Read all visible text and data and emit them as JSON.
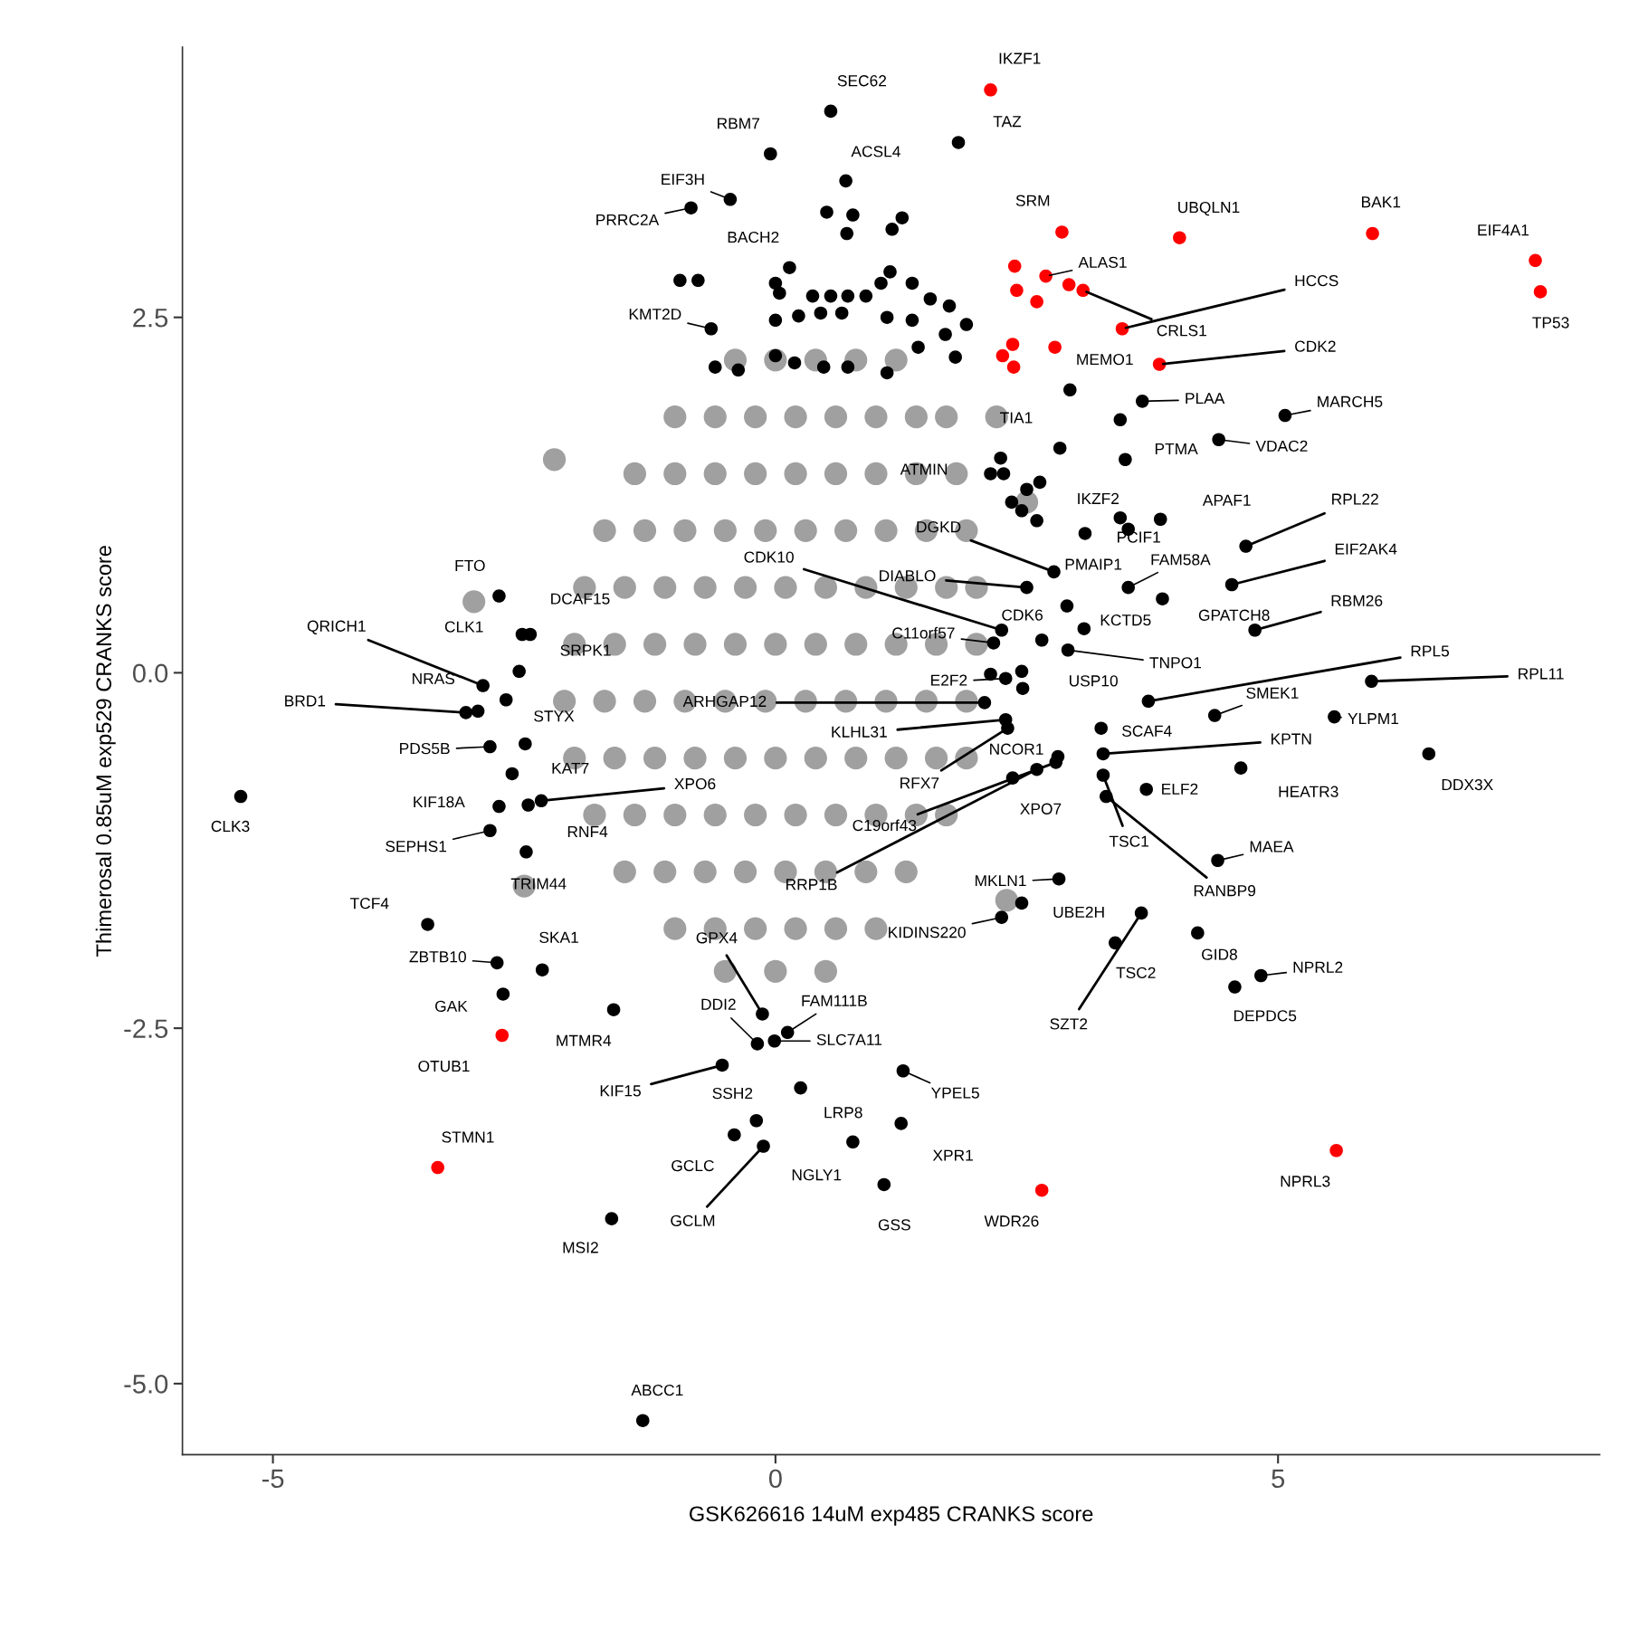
{
  "chart_data": {
    "type": "scatter",
    "marker": "circle",
    "xlabel": "GSK626616 14uM exp485 CRANKS score",
    "ylabel": "Thimerosal 0.85uM exp529 CRANKS score",
    "xlim": [
      -5.9,
      8.2
    ],
    "ylim": [
      -5.5,
      4.4
    ],
    "xticks": [
      -5,
      0,
      5
    ],
    "yticks": [
      {
        "value": -5,
        "label": "-5.0"
      },
      {
        "value": -2.5,
        "label": "-2.5"
      },
      {
        "value": 0,
        "label": "0.0"
      },
      {
        "value": 2.5,
        "label": "2.5"
      }
    ],
    "series": [
      {
        "color": "#a0a0a0",
        "x": [
          -0.4,
          0,
          0.4,
          0.8,
          1.2,
          -1.0,
          -0.6,
          -0.2,
          0.2,
          0.6,
          1.0,
          1.4,
          1.7,
          -1.4,
          -1.0,
          -0.6,
          -0.2,
          0.2,
          0.6,
          1.0,
          1.4,
          1.8,
          -1.7,
          -1.3,
          -0.9,
          -0.5,
          -0.1,
          0.3,
          0.7,
          1.1,
          1.5,
          1.9,
          -1.9,
          -1.5,
          -1.1,
          -0.7,
          -0.3,
          0.1,
          0.5,
          0.9,
          1.3,
          1.7,
          2.0,
          -2.0,
          -1.6,
          -1.2,
          -0.8,
          -0.4,
          0,
          0.4,
          0.8,
          1.2,
          1.6,
          2.0,
          -2.1,
          -1.7,
          -1.3,
          -0.9,
          -0.5,
          -0.1,
          0.3,
          0.7,
          1.1,
          1.5,
          1.9,
          -2.0,
          -1.6,
          -1.2,
          -0.8,
          -0.4,
          0,
          0.4,
          0.8,
          1.2,
          1.6,
          1.9,
          -1.8,
          -1.4,
          -1.0,
          -0.6,
          -0.2,
          0.2,
          0.6,
          1.0,
          1.4,
          1.7,
          -1.5,
          -1.1,
          -0.7,
          -0.3,
          0.1,
          0.5,
          0.9,
          1.3,
          -1.0,
          -0.6,
          -0.2,
          0.2,
          0.6,
          1.0,
          -0.5,
          0,
          0.5,
          -3.0,
          -2.5,
          2.5,
          2.3,
          -2.2,
          2.2
        ],
        "values": [
          2.2,
          2.2,
          2.2,
          2.2,
          2.2,
          1.8,
          1.8,
          1.8,
          1.8,
          1.8,
          1.8,
          1.8,
          1.8,
          1.4,
          1.4,
          1.4,
          1.4,
          1.4,
          1.4,
          1.4,
          1.4,
          1.4,
          1.0,
          1.0,
          1.0,
          1.0,
          1.0,
          1.0,
          1.0,
          1.0,
          1.0,
          1.0,
          0.6,
          0.6,
          0.6,
          0.6,
          0.6,
          0.6,
          0.6,
          0.6,
          0.6,
          0.6,
          0.6,
          0.2,
          0.2,
          0.2,
          0.2,
          0.2,
          0.2,
          0.2,
          0.2,
          0.2,
          0.2,
          0.2,
          -0.2,
          -0.2,
          -0.2,
          -0.2,
          -0.2,
          -0.2,
          -0.2,
          -0.2,
          -0.2,
          -0.2,
          -0.2,
          -0.6,
          -0.6,
          -0.6,
          -0.6,
          -0.6,
          -0.6,
          -0.6,
          -0.6,
          -0.6,
          -0.6,
          -0.6,
          -1.0,
          -1.0,
          -1.0,
          -1.0,
          -1.0,
          -1.0,
          -1.0,
          -1.0,
          -1.0,
          -1.0,
          -1.4,
          -1.4,
          -1.4,
          -1.4,
          -1.4,
          -1.4,
          -1.4,
          -1.4,
          -1.8,
          -1.8,
          -1.8,
          -1.8,
          -1.8,
          -1.8,
          -2.1,
          -2.1,
          -2.1,
          0.5,
          -1.5,
          1.2,
          -1.6,
          1.5,
          1.8
        ]
      },
      {
        "color": "#000000",
        "x": [
          0.55,
          1.82,
          -0.05,
          0.7,
          -0.45,
          -0.84,
          0.14,
          -0.64,
          3.65,
          5.07,
          4.41,
          3.48,
          2.83,
          2.14,
          2.63,
          3.83,
          4.68,
          2.77,
          3.08,
          3.51,
          3.51,
          4.54,
          2.25,
          2.5,
          2.9,
          3.07,
          3.85,
          4.77,
          2.17,
          -2.75,
          -2.44,
          -2.91,
          -2.52,
          -2.55,
          2.46,
          2.91,
          3.71,
          5.93,
          4.37,
          -2.96,
          2.29,
          2.08,
          -3.08,
          -2.68,
          5.56,
          3.24,
          2.29,
          3.26,
          2.81,
          -2.84,
          6.5,
          4.63,
          3.69,
          -2.62,
          -2.33,
          2.31,
          -2.75,
          2.36,
          -5.32,
          2.79,
          -2.84,
          -2.46,
          3.26,
          3.29,
          4.4,
          -2.48,
          2.6,
          2.82,
          -3.46,
          2.45,
          -2.77,
          -2.32,
          -0.13,
          2.25,
          3.38,
          4.2,
          4.83,
          4.57,
          3.64,
          -2.71,
          -0.18,
          0.12,
          -0.01,
          -1.61,
          -0.53,
          -0.19,
          1.27,
          0.25,
          1.25,
          -0.41,
          0.77,
          -0.12,
          1.08,
          -1.63,
          -1.32,
          0.51,
          0.77,
          0.71,
          1.26,
          1.16,
          -0.95,
          -0.77,
          0,
          0.04,
          0.37,
          0.55,
          0.72,
          0.9,
          1.05,
          1.14,
          1.36,
          1.54,
          1.73,
          1.9,
          0,
          0.23,
          0.45,
          0.66,
          1.11,
          1.36,
          1.69,
          -0.6,
          -0.37,
          0,
          0.19,
          0.48,
          0.72,
          1.11,
          1.42,
          1.79,
          2.24,
          2.5,
          2.45,
          2.6,
          2.27,
          2.35,
          3.43,
          2.65,
          2.14,
          2.45,
          -2.49,
          2.93,
          3.43
        ],
        "values": [
          3.95,
          3.73,
          3.65,
          3.46,
          3.33,
          3.27,
          2.85,
          2.42,
          1.91,
          1.81,
          1.64,
          1.5,
          1.58,
          1.4,
          1.34,
          1.08,
          0.89,
          0.71,
          0.98,
          1.01,
          0.6,
          0.62,
          0.3,
          0.6,
          0.47,
          0.31,
          0.52,
          0.3,
          0.21,
          0.54,
          0.27,
          -0.09,
          0.27,
          0.01,
          -0.11,
          0.16,
          -0.2,
          -0.06,
          -0.3,
          -0.27,
          -0.04,
          -0.21,
          -0.28,
          -0.19,
          -0.31,
          -0.39,
          -0.33,
          -0.57,
          -0.59,
          -0.52,
          -0.57,
          -0.67,
          -0.82,
          -0.71,
          -0.9,
          -0.39,
          -0.94,
          -0.74,
          -0.87,
          -0.63,
          -1.11,
          -0.93,
          -0.72,
          -0.87,
          -1.32,
          -1.26,
          -0.68,
          -1.45,
          -1.77,
          -1.62,
          -2.04,
          -2.09,
          -2.4,
          -1.72,
          -1.9,
          -1.83,
          -2.13,
          -2.21,
          -1.69,
          -2.26,
          -2.61,
          -2.53,
          -2.59,
          -2.37,
          -2.76,
          -3.15,
          -2.8,
          -2.92,
          -3.17,
          -3.25,
          -3.3,
          -3.33,
          -3.6,
          -3.84,
          -5.26,
          3.24,
          3.22,
          3.09,
          3.2,
          3.12,
          2.76,
          2.76,
          2.74,
          2.67,
          2.65,
          2.65,
          2.65,
          2.65,
          2.74,
          2.82,
          2.74,
          2.63,
          2.58,
          2.45,
          2.48,
          2.51,
          2.53,
          2.53,
          2.5,
          2.48,
          2.38,
          2.15,
          2.13,
          2.23,
          2.18,
          2.15,
          2.15,
          2.11,
          2.29,
          2.22,
          1.51,
          1.29,
          1.14,
          1.07,
          1.4,
          1.2,
          1.09,
          0.23,
          -0.01,
          0.01,
          -0.5,
          1.99,
          1.78
        ]
      },
      {
        "color": "#ff0000",
        "x": [
          2.14,
          2.85,
          4.02,
          5.94,
          7.56,
          2.69,
          3.45,
          3.06,
          7.61,
          3.82,
          2.78,
          -2.72,
          -3.36,
          5.58,
          2.65,
          2.38,
          2.4,
          2.6,
          2.92,
          2.36,
          2.26,
          2.37
        ],
        "values": [
          4.1,
          3.1,
          3.06,
          3.09,
          2.9,
          2.79,
          2.42,
          2.69,
          2.68,
          2.17,
          2.29,
          -2.55,
          -3.48,
          -3.36,
          -3.64,
          2.86,
          2.69,
          2.61,
          2.73,
          2.31,
          2.23,
          2.15
        ]
      }
    ],
    "annotations": [
      {
        "text": "IKZF1",
        "x": 2.14,
        "y": 4.1
      },
      {
        "text": "SEC62",
        "x": 0.55,
        "y": 3.95
      },
      {
        "text": "TAZ",
        "x": 1.82,
        "y": 3.73
      },
      {
        "text": "RBM7",
        "x": -0.05,
        "y": 3.65
      },
      {
        "text": "ACSL4",
        "x": 0.7,
        "y": 3.46
      },
      {
        "text": "EIF3H",
        "x": -0.45,
        "y": 3.33
      },
      {
        "text": "SRM",
        "x": 2.85,
        "y": 3.1
      },
      {
        "text": "UBQLN1",
        "x": 4.02,
        "y": 3.06
      },
      {
        "text": "BAK1",
        "x": 5.94,
        "y": 3.09
      },
      {
        "text": "EIF4A1",
        "x": 7.56,
        "y": 2.9
      },
      {
        "text": "PRRC2A",
        "x": -0.84,
        "y": 3.27
      },
      {
        "text": "BACH2",
        "x": 0.14,
        "y": 2.85
      },
      {
        "text": "ALAS1",
        "x": 2.69,
        "y": 2.79
      },
      {
        "text": "HCCS",
        "x": 3.45,
        "y": 2.42
      },
      {
        "text": "CRLS1",
        "x": 3.06,
        "y": 2.69
      },
      {
        "text": "TP53",
        "x": 7.61,
        "y": 2.68
      },
      {
        "text": "KMT2D",
        "x": -0.64,
        "y": 2.42
      },
      {
        "text": "CDK2",
        "x": 3.82,
        "y": 2.17
      },
      {
        "text": "MEMO1",
        "x": 2.78,
        "y": 2.29
      },
      {
        "text": "PLAA",
        "x": 3.65,
        "y": 1.91
      },
      {
        "text": "MARCH5",
        "x": 5.07,
        "y": 1.81
      },
      {
        "text": "VDAC2",
        "x": 4.41,
        "y": 1.64
      },
      {
        "text": "PTMA",
        "x": 3.48,
        "y": 1.5
      },
      {
        "text": "TIA1",
        "x": 2.83,
        "y": 1.58
      },
      {
        "text": "ATMIN",
        "x": 2.14,
        "y": 1.4
      },
      {
        "text": "IKZF2",
        "x": 2.63,
        "y": 1.34
      },
      {
        "text": "APAF1",
        "x": 3.83,
        "y": 1.08
      },
      {
        "text": "RPL22",
        "x": 4.68,
        "y": 0.89
      },
      {
        "text": "DGKD",
        "x": 2.77,
        "y": 0.71
      },
      {
        "text": "PMAIP1",
        "x": 3.08,
        "y": 0.98
      },
      {
        "text": "PCIF1",
        "x": 3.51,
        "y": 1.01
      },
      {
        "text": "FAM58A",
        "x": 3.51,
        "y": 0.6
      },
      {
        "text": "EIF2AK4",
        "x": 4.54,
        "y": 0.62
      },
      {
        "text": "CDK10",
        "x": 2.25,
        "y": 0.3
      },
      {
        "text": "DIABLO",
        "x": 2.5,
        "y": 0.6
      },
      {
        "text": "CDK6",
        "x": 2.9,
        "y": 0.47
      },
      {
        "text": "KCTD5",
        "x": 3.07,
        "y": 0.31
      },
      {
        "text": "GPATCH8",
        "x": 3.85,
        "y": 0.52
      },
      {
        "text": "RBM26",
        "x": 4.77,
        "y": 0.3
      },
      {
        "text": "C11orf57",
        "x": 2.17,
        "y": 0.21
      },
      {
        "text": "FTO",
        "x": -2.75,
        "y": 0.54
      },
      {
        "text": "DCAF15",
        "x": -2.44,
        "y": 0.27
      },
      {
        "text": "QRICH1",
        "x": -2.91,
        "y": -0.09
      },
      {
        "text": "CLK1",
        "x": -2.52,
        "y": 0.27
      },
      {
        "text": "SRPK1",
        "x": -2.55,
        "y": 0.01
      },
      {
        "text": "USP10",
        "x": 2.46,
        "y": -0.11
      },
      {
        "text": "TNPO1",
        "x": 2.91,
        "y": 0.16
      },
      {
        "text": "RPL5",
        "x": 3.71,
        "y": -0.2
      },
      {
        "text": "RPL11",
        "x": 5.93,
        "y": -0.06
      },
      {
        "text": "SMEK1",
        "x": 4.37,
        "y": -0.3
      },
      {
        "text": "NRAS",
        "x": -2.96,
        "y": -0.27
      },
      {
        "text": "E2F2",
        "x": 2.29,
        "y": -0.04
      },
      {
        "text": "ARHGAP12",
        "x": 2.08,
        "y": -0.21
      },
      {
        "text": "BRD1",
        "x": -3.08,
        "y": -0.28
      },
      {
        "text": "STYX",
        "x": -2.68,
        "y": -0.19
      },
      {
        "text": "YLPM1",
        "x": 5.56,
        "y": -0.31
      },
      {
        "text": "SCAF4",
        "x": 3.24,
        "y": -0.39
      },
      {
        "text": "KLHL31",
        "x": 2.29,
        "y": -0.33
      },
      {
        "text": "KPTN",
        "x": 3.26,
        "y": -0.57
      },
      {
        "text": "NCOR1",
        "x": 2.81,
        "y": -0.59
      },
      {
        "text": "PDS5B",
        "x": -2.84,
        "y": -0.52
      },
      {
        "text": "DDX3X",
        "x": 6.5,
        "y": -0.57
      },
      {
        "text": "HEATR3",
        "x": 4.63,
        "y": -0.67
      },
      {
        "text": "ELF2",
        "x": 3.69,
        "y": -0.82
      },
      {
        "text": "KAT7",
        "x": -2.62,
        "y": -0.71
      },
      {
        "text": "XPO6",
        "x": -2.33,
        "y": -0.9
      },
      {
        "text": "RFX7",
        "x": 2.31,
        "y": -0.39
      },
      {
        "text": "KIF18A",
        "x": -2.75,
        "y": -0.94
      },
      {
        "text": "XPO7",
        "x": 2.36,
        "y": -0.74
      },
      {
        "text": "CLK3",
        "x": -5.32,
        "y": -0.87
      },
      {
        "text": "C19orf43",
        "x": 2.79,
        "y": -0.63
      },
      {
        "text": "SEPHS1",
        "x": -2.84,
        "y": -1.11
      },
      {
        "text": "RNF4",
        "x": -2.46,
        "y": -0.93
      },
      {
        "text": "TSC1",
        "x": 3.26,
        "y": -0.72
      },
      {
        "text": "RANBP9",
        "x": 3.29,
        "y": -0.87
      },
      {
        "text": "MAEA",
        "x": 4.4,
        "y": -1.32
      },
      {
        "text": "TRIM44",
        "x": -2.48,
        "y": -1.26
      },
      {
        "text": "RRP1B",
        "x": 2.6,
        "y": -0.68
      },
      {
        "text": "MKLN1",
        "x": 2.82,
        "y": -1.45
      },
      {
        "text": "TCF4",
        "x": -3.46,
        "y": -1.77
      },
      {
        "text": "UBE2H",
        "x": 2.45,
        "y": -1.62
      },
      {
        "text": "ZBTB10",
        "x": -2.77,
        "y": -2.04
      },
      {
        "text": "SKA1",
        "x": -2.32,
        "y": -2.09
      },
      {
        "text": "GPX4",
        "x": -0.13,
        "y": -2.4
      },
      {
        "text": "KIDINS220",
        "x": 2.25,
        "y": -1.72
      },
      {
        "text": "TSC2",
        "x": 3.38,
        "y": -1.9
      },
      {
        "text": "GID8",
        "x": 4.2,
        "y": -1.83
      },
      {
        "text": "NPRL2",
        "x": 4.83,
        "y": -2.13
      },
      {
        "text": "DEPDC5",
        "x": 4.57,
        "y": -2.21
      },
      {
        "text": "SZT2",
        "x": 3.64,
        "y": -1.69
      },
      {
        "text": "GAK",
        "x": -2.71,
        "y": -2.26
      },
      {
        "text": "DDI2",
        "x": -0.18,
        "y": -2.61
      },
      {
        "text": "FAM111B",
        "x": 0.12,
        "y": -2.53
      },
      {
        "text": "SLC7A11",
        "x": -0.01,
        "y": -2.59
      },
      {
        "text": "MTMR4",
        "x": -1.61,
        "y": -2.37
      },
      {
        "text": "OTUB1",
        "x": -2.72,
        "y": -2.55
      },
      {
        "text": "KIF15",
        "x": -0.53,
        "y": -2.76
      },
      {
        "text": "SSH2",
        "x": -0.19,
        "y": -3.15
      },
      {
        "text": "YPEL5",
        "x": 1.27,
        "y": -2.8
      },
      {
        "text": "LRP8",
        "x": 0.25,
        "y": -2.92
      },
      {
        "text": "STMN1",
        "x": -3.36,
        "y": -3.48
      },
      {
        "text": "XPR1",
        "x": 1.25,
        "y": -3.17
      },
      {
        "text": "GCLC",
        "x": -0.41,
        "y": -3.25
      },
      {
        "text": "NGLY1",
        "x": 0.77,
        "y": -3.3
      },
      {
        "text": "NPRL3",
        "x": 5.58,
        "y": -3.36
      },
      {
        "text": "WDR26",
        "x": 2.65,
        "y": -3.64
      },
      {
        "text": "GCLM",
        "x": -0.12,
        "y": -3.33
      },
      {
        "text": "GSS",
        "x": 1.08,
        "y": -3.6
      },
      {
        "text": "MSI2",
        "x": -1.63,
        "y": -3.84
      },
      {
        "text": "ABCC1",
        "x": -1.32,
        "y": -5.26
      }
    ]
  }
}
